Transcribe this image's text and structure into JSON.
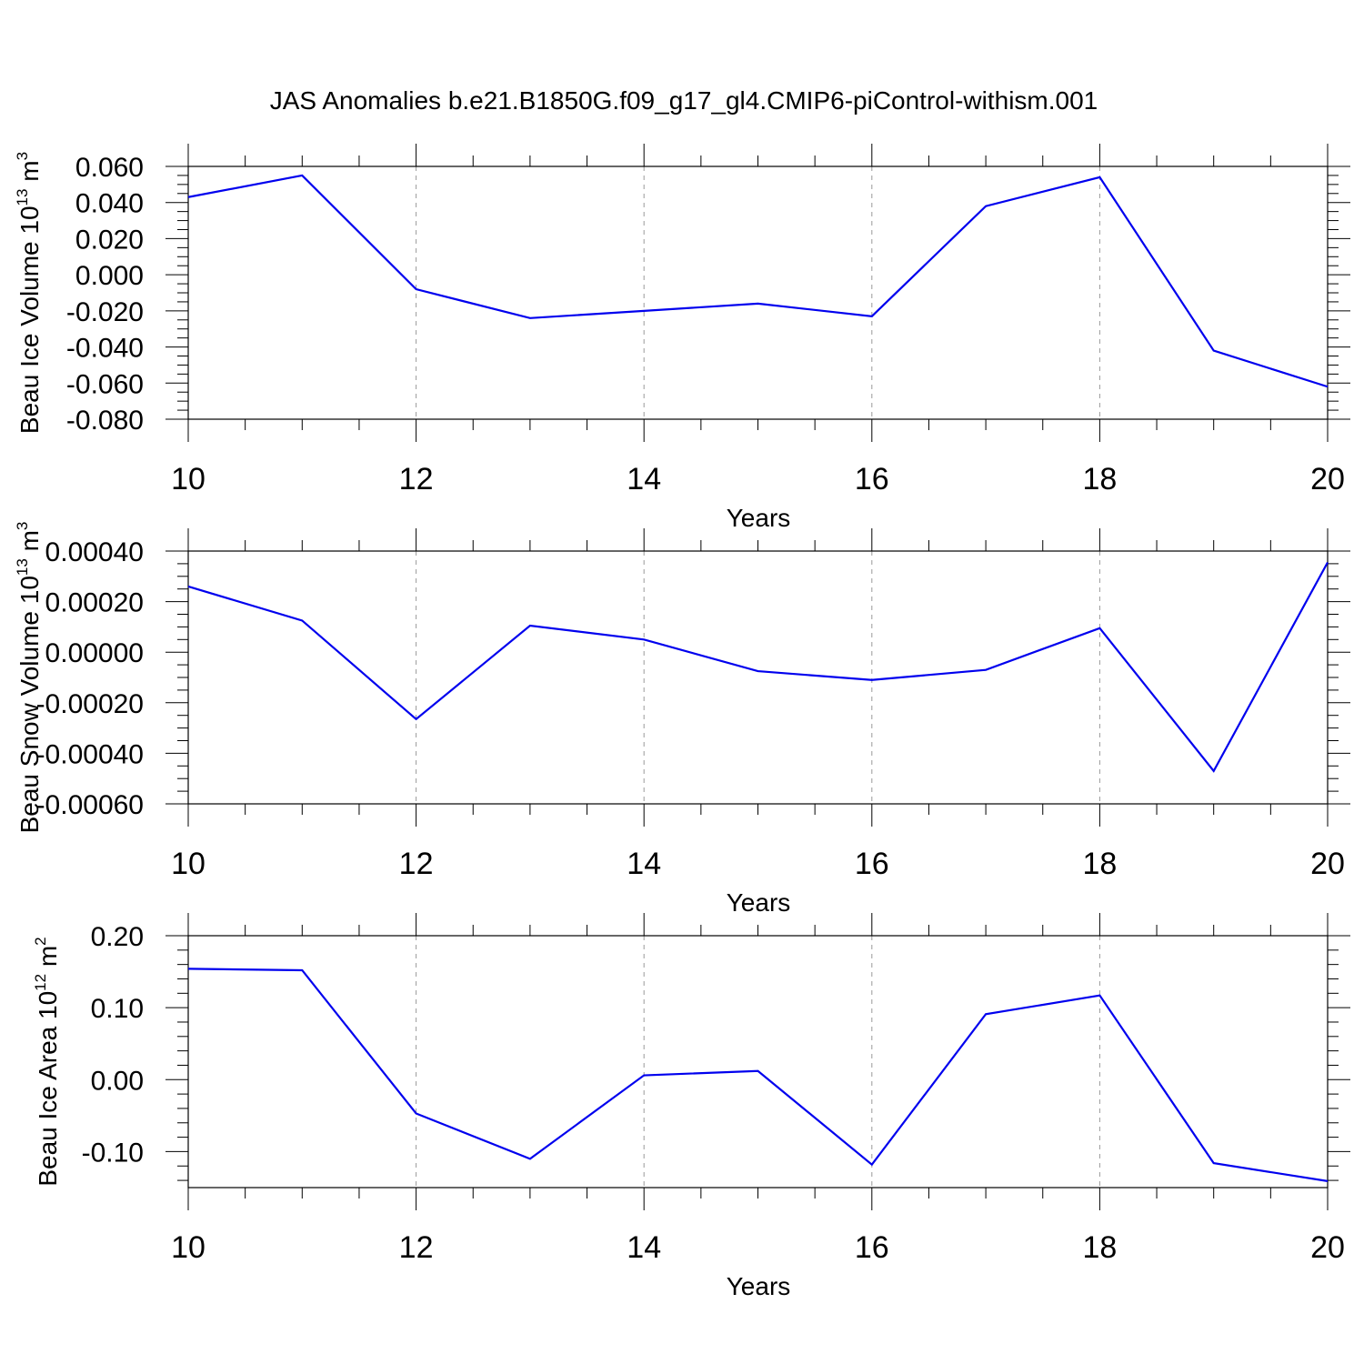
{
  "title": "JAS Anomalies b.e21.B1850G.f09_g17_gl4.CMIP6-piControl-withism.001",
  "line_color": "#0000ee",
  "chart_data": [
    {
      "type": "line",
      "ylabel_main": "Beau Ice Volume 10",
      "ylabel_sup": "13",
      "ylabel_unit": " m",
      "ylabel_unit_sup": "3",
      "xlabel": "Years",
      "xlim": [
        10,
        20
      ],
      "ylim": [
        -0.08,
        0.06
      ],
      "x_ticks": [
        "10",
        "12",
        "14",
        "16",
        "18",
        "20"
      ],
      "y_ticks": [
        "0.060",
        "0.040",
        "0.020",
        "0.000",
        "-0.020",
        "-0.040",
        "-0.060",
        "-0.080"
      ],
      "x": [
        10,
        11,
        12,
        13,
        14,
        15,
        16,
        17,
        18,
        19,
        20
      ],
      "values": [
        0.043,
        0.055,
        -0.008,
        -0.024,
        -0.02,
        -0.016,
        -0.023,
        0.038,
        0.054,
        -0.042,
        -0.062
      ]
    },
    {
      "type": "line",
      "ylabel_main": "Beau Snow Volume 10",
      "ylabel_sup": "13",
      "ylabel_unit": " m",
      "ylabel_unit_sup": "3",
      "xlabel": "Years",
      "xlim": [
        10,
        20
      ],
      "ylim": [
        -0.0006,
        0.0004
      ],
      "x_ticks": [
        "10",
        "12",
        "14",
        "16",
        "18",
        "20"
      ],
      "y_ticks": [
        "0.00040",
        "0.00020",
        "0.00000",
        "-0.00020",
        "-0.00040",
        "-0.00060"
      ],
      "x": [
        10,
        11,
        12,
        13,
        14,
        15,
        16,
        17,
        18,
        19,
        20
      ],
      "values": [
        0.00026,
        0.000125,
        -0.000265,
        0.000105,
        5e-05,
        -7.5e-05,
        -0.00011,
        -7e-05,
        9.5e-05,
        -0.00047,
        0.000355
      ]
    },
    {
      "type": "line",
      "ylabel_main": "Beau Ice Area 10",
      "ylabel_sup": "12",
      "ylabel_unit": " m",
      "ylabel_unit_sup": "2",
      "xlabel": "Years",
      "xlim": [
        10,
        20
      ],
      "ylim": [
        -0.15,
        0.2
      ],
      "x_ticks": [
        "10",
        "12",
        "14",
        "16",
        "18",
        "20"
      ],
      "y_ticks": [
        "0.20",
        "0.10",
        "0.00",
        "-0.10"
      ],
      "x": [
        10,
        11,
        12,
        13,
        14,
        15,
        16,
        17,
        18,
        19,
        20
      ],
      "values": [
        0.154,
        0.152,
        -0.047,
        -0.11,
        0.006,
        0.012,
        -0.118,
        0.091,
        0.117,
        -0.116,
        -0.141
      ]
    }
  ]
}
